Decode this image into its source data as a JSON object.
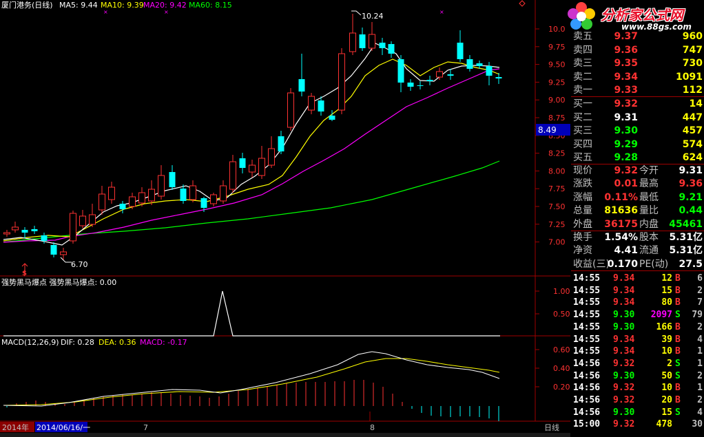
{
  "header": {
    "stock_title": "厦门港务(日线)",
    "ma5": "MA5: 9.44",
    "ma10": "MA10: 9.39",
    "ma20": "MA20: 9.42",
    "ma60": "MA60: 8.15"
  },
  "annotations": {
    "high_label": "10.24",
    "low_label": "6.70",
    "price_marker": "8.49",
    "buy_signal": "$"
  },
  "indicator": {
    "title": "强势黑马爆点 强势黑马爆点: 0.00",
    "levels": [
      "1.00",
      "0.50"
    ]
  },
  "macd": {
    "name": "MACD(12,26,9)",
    "dif": "DIF: 0.28",
    "dea": "DEA: 0.36",
    "macd": "MACD: -0.17",
    "levels": [
      "0.60",
      "0.40",
      "0.20"
    ]
  },
  "bottom_bar": {
    "year": "2014年",
    "date": "2014/06/16/一",
    "month7": "7",
    "month8": "8",
    "period": "日线"
  },
  "price_axis": [
    "10.0",
    "9.75",
    "9.50",
    "9.25",
    "9.00",
    "8.75",
    "8.50",
    "8.25",
    "8.00",
    "7.75",
    "7.50",
    "7.25",
    "7.00"
  ],
  "logo": {
    "name": "分析家公式网",
    "url": "www.88gs.com"
  },
  "order_book": {
    "sell": [
      {
        "label": "卖五",
        "price": "9.37",
        "vol": "960"
      },
      {
        "label": "卖四",
        "price": "9.36",
        "vol": "747"
      },
      {
        "label": "卖三",
        "price": "9.35",
        "vol": "730"
      },
      {
        "label": "卖二",
        "price": "9.34",
        "vol": "1091"
      },
      {
        "label": "卖一",
        "price": "9.33",
        "vol": "112"
      }
    ],
    "buy": [
      {
        "label": "买一",
        "price": "9.32",
        "vol": "14"
      },
      {
        "label": "买二",
        "price": "9.31",
        "vol": "447"
      },
      {
        "label": "买三",
        "price": "9.30",
        "vol": "457"
      },
      {
        "label": "买四",
        "price": "9.29",
        "vol": "574"
      },
      {
        "label": "买五",
        "price": "9.28",
        "vol": "624"
      }
    ]
  },
  "stats": {
    "rows": [
      {
        "l1": "现价",
        "v1": "9.32",
        "l2": "今开",
        "v2": "9.31"
      },
      {
        "l1": "涨跌",
        "v1": "0.01",
        "l2": "最高",
        "v2": "9.36"
      },
      {
        "l1": "涨幅",
        "v1": "0.11%",
        "l2": "最低",
        "v2": "9.21"
      },
      {
        "l1": "总量",
        "v1": "81636",
        "l2": "量比",
        "v2": "0.44"
      },
      {
        "l1": "外盘",
        "v1": "36175",
        "l2": "内盘",
        "v2": "45461"
      },
      {
        "l1": "换手",
        "v1": "1.54%",
        "l2": "股本",
        "v2": "5.31亿"
      },
      {
        "l1": "净资",
        "v1": "4.41",
        "l2": "流通",
        "v2": "5.31亿"
      },
      {
        "l1": "收益(三)",
        "v1": "0.170",
        "l2": "PE(动)",
        "v2": "27.5"
      }
    ]
  },
  "ticks": [
    {
      "time": "14:55",
      "price": "9.34",
      "vol": "12",
      "side": "B",
      "n": "6"
    },
    {
      "time": "14:55",
      "price": "9.34",
      "vol": "15",
      "side": "B",
      "n": "2"
    },
    {
      "time": "14:55",
      "price": "9.34",
      "vol": "80",
      "side": "B",
      "n": "7"
    },
    {
      "time": "14:55",
      "price": "9.30",
      "vol": "2097",
      "side": "S",
      "n": "79"
    },
    {
      "time": "14:55",
      "price": "9.30",
      "vol": "166",
      "side": "B",
      "n": "2"
    },
    {
      "time": "14:55",
      "price": "9.34",
      "vol": "39",
      "side": "B",
      "n": "4"
    },
    {
      "time": "14:55",
      "price": "9.34",
      "vol": "10",
      "side": "B",
      "n": "1"
    },
    {
      "time": "14:56",
      "price": "9.32",
      "vol": "2",
      "side": "S",
      "n": "1"
    },
    {
      "time": "14:56",
      "price": "9.30",
      "vol": "50",
      "side": "S",
      "n": "2"
    },
    {
      "time": "14:56",
      "price": "9.32",
      "vol": "10",
      "side": "B",
      "n": "1"
    },
    {
      "time": "14:56",
      "price": "9.32",
      "vol": "20",
      "side": "B",
      "n": "2"
    },
    {
      "time": "14:56",
      "price": "9.30",
      "vol": "15",
      "side": "S",
      "n": "4"
    },
    {
      "time": "15:00",
      "price": "9.32",
      "vol": "478",
      "side": "",
      "n": "30"
    }
  ],
  "colors": {
    "up": "#ff3232",
    "down": "#00ffff",
    "ma5": "#ffffff",
    "ma10": "#ffff00",
    "ma20": "#ff00ff",
    "ma60": "#00ff00",
    "grid": "#a00000"
  }
}
